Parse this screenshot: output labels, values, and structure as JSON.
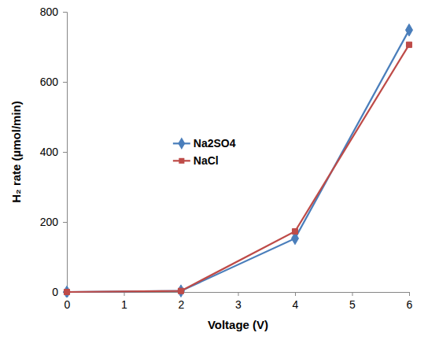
{
  "chart_data": {
    "type": "line",
    "x_label": "Voltage (V)",
    "y_label": "H₂ rate (µmol/min)",
    "x": [
      0,
      2,
      4,
      6
    ],
    "series": [
      {
        "name": "Na2SO4",
        "color": "#4a7ebb",
        "marker": "diamond",
        "values": [
          0,
          3,
          153,
          748
        ]
      },
      {
        "name": "NaCl",
        "color": "#be4b48",
        "marker": "square",
        "values": [
          0,
          3,
          173,
          706
        ]
      }
    ],
    "xlim": [
      0,
      6
    ],
    "xticks": [
      0,
      1,
      2,
      3,
      4,
      5,
      6
    ],
    "ylim": [
      0,
      800
    ],
    "yticks": [
      0,
      200,
      400,
      600,
      800
    ],
    "grid": false,
    "legend": "center"
  }
}
